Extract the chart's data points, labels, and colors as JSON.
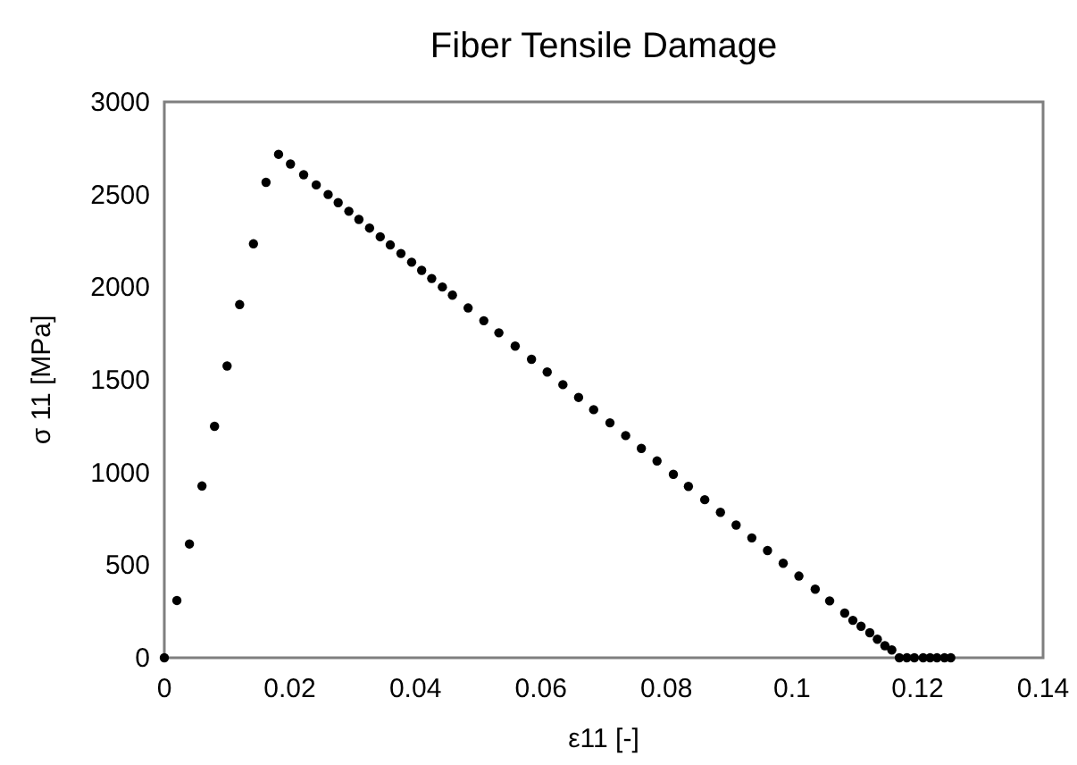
{
  "chart_data": {
    "type": "scatter",
    "title": "Fiber Tensile Damage",
    "xlabel": "ε11 [-]",
    "ylabel": "σ 11 [MPa]",
    "x": [
      0,
      0.002,
      0.004,
      0.006,
      0.008,
      0.01,
      0.012,
      0.0142,
      0.0162,
      0.0182,
      0.0201,
      0.0222,
      0.0242,
      0.0261,
      0.0277,
      0.0294,
      0.031,
      0.0327,
      0.0344,
      0.036,
      0.0377,
      0.0394,
      0.041,
      0.0426,
      0.0443,
      0.0459,
      0.0484,
      0.0509,
      0.0533,
      0.0559,
      0.0585,
      0.061,
      0.0635,
      0.066,
      0.0684,
      0.071,
      0.0735,
      0.076,
      0.0785,
      0.0811,
      0.0835,
      0.0861,
      0.0886,
      0.0911,
      0.0936,
      0.0961,
      0.0986,
      0.1011,
      0.1037,
      0.106,
      0.1084,
      0.1097,
      0.111,
      0.1124,
      0.1136,
      0.1148,
      0.1159,
      0.1171,
      0.1183,
      0.1195,
      0.1209,
      0.122,
      0.1231,
      0.1243,
      0.1253
    ],
    "series": [
      {
        "color": "#000000",
        "values": [
          0,
          309,
          614,
          927,
          1249,
          1575,
          1906,
          2234,
          2566,
          2717,
          2665,
          2607,
          2552,
          2500,
          2456,
          2410,
          2366,
          2319,
          2272,
          2228,
          2182,
          2135,
          2091,
          2047,
          2001,
          1957,
          1888,
          1819,
          1754,
          1682,
          1611,
          1542,
          1474,
          1405,
          1339,
          1268,
          1199,
          1130,
          1062,
          990,
          925,
          853,
          785,
          716,
          647,
          579,
          510,
          441,
          370,
          307,
          241,
          202,
          170,
          135,
          100,
          65,
          42,
          0,
          0,
          0,
          0,
          0,
          0,
          0,
          0
        ]
      }
    ],
    "xlim": [
      0,
      0.14
    ],
    "xticks": [
      0,
      0.02,
      0.04,
      0.06,
      0.08,
      0.1,
      0.12,
      0.14
    ],
    "ylim": [
      0,
      3000
    ],
    "yticks": [
      0,
      500,
      1000,
      1500,
      2000,
      2500,
      3000
    ],
    "grid": false,
    "marker": "circle"
  }
}
